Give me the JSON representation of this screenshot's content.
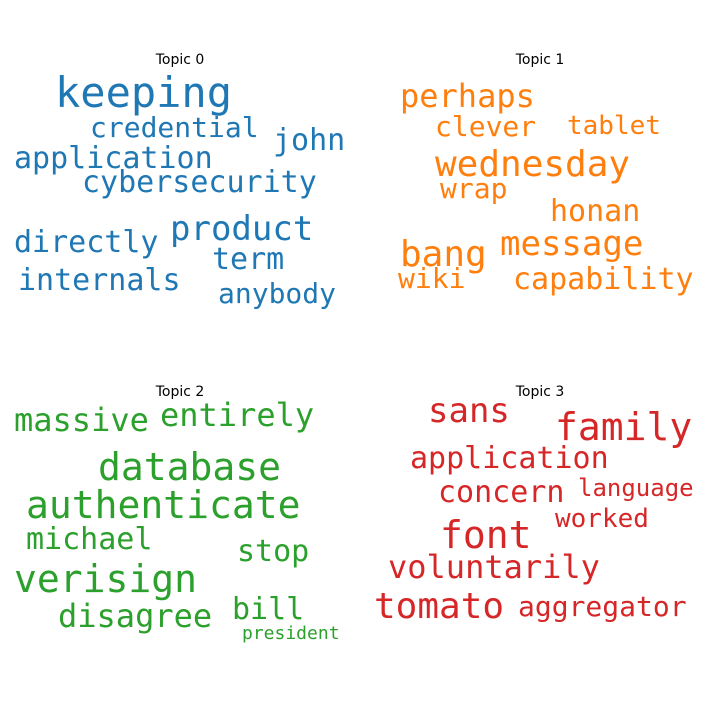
{
  "chart_data": [
    {
      "type": "wordcloud",
      "title": "Topic 0",
      "color": "#1f77b4",
      "words": [
        "keeping",
        "credential",
        "john",
        "application",
        "cybersecurity",
        "product",
        "directly",
        "term",
        "internals",
        "anybody"
      ]
    },
    {
      "type": "wordcloud",
      "title": "Topic 1",
      "color": "#ff7f0e",
      "words": [
        "perhaps",
        "clever",
        "tablet",
        "wednesday",
        "wrap",
        "honan",
        "bang",
        "message",
        "wiki",
        "capability"
      ]
    },
    {
      "type": "wordcloud",
      "title": "Topic 2",
      "color": "#2ca02c",
      "words": [
        "massive",
        "entirely",
        "database",
        "authenticate",
        "michael",
        "stop",
        "verisign",
        "disagree",
        "bill",
        "president"
      ]
    },
    {
      "type": "wordcloud",
      "title": "Topic 3",
      "color": "#d62728",
      "words": [
        "sans",
        "family",
        "application",
        "concern",
        "language",
        "font",
        "worked",
        "voluntarily",
        "tomato",
        "aggregator"
      ]
    }
  ]
}
